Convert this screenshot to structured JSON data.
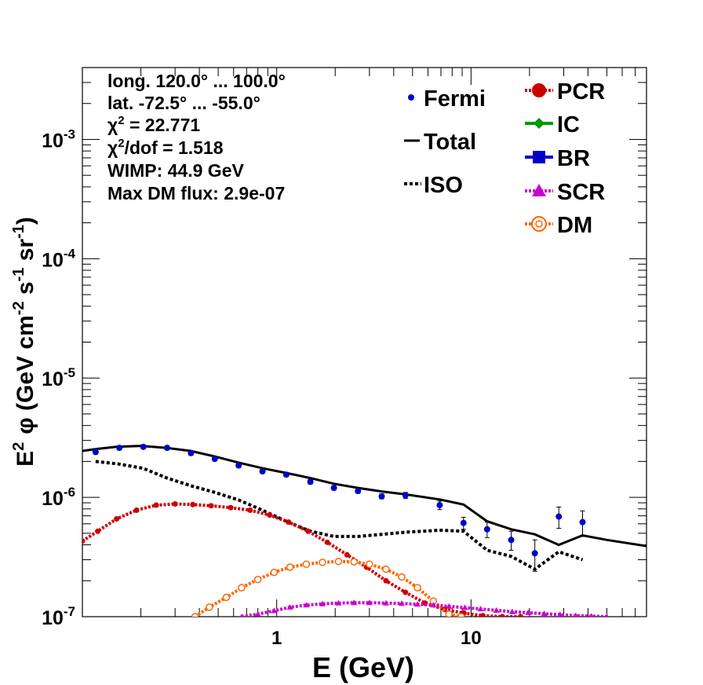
{
  "chart_data": {
    "type": "scatter",
    "xlabel": "E (GeV)",
    "ylabel": {
      "base": "E",
      "sup1": "2",
      "phi": "φ (GeV cm",
      "sup2": "-2",
      "mid1": " s",
      "sup3": "-1",
      "mid2": " sr",
      "sup4": "-1",
      "end": ")"
    },
    "x_scale": "log",
    "y_scale": "log",
    "xlim": [
      0.1,
      80
    ],
    "ylim": [
      1e-07,
      0.004
    ],
    "x_ticks": [
      {
        "value": 1,
        "label": "1"
      },
      {
        "value": 10,
        "label": "10"
      }
    ],
    "y_ticks": [
      {
        "value": 1e-07,
        "base": "10",
        "exp": "-7"
      },
      {
        "value": 1e-06,
        "base": "10",
        "exp": "-6"
      },
      {
        "value": 1e-05,
        "base": "10",
        "exp": "-5"
      },
      {
        "value": 0.0001,
        "base": "10",
        "exp": "-4"
      },
      {
        "value": 0.001,
        "base": "10",
        "exp": "-3"
      }
    ],
    "info_text": [
      {
        "text": "long. 120.0° ... 100.0°"
      },
      {
        "text": "lat. -72.5° ... -55.0°"
      },
      {
        "pre": "χ",
        "sup": "2",
        "post": " = 22.771"
      },
      {
        "pre": "χ",
        "sup": "2",
        "post": "/dof = 1.518"
      },
      {
        "text": "WIMP: 44.9 GeV"
      },
      {
        "text": "Max DM flux: 2.9e-07"
      }
    ],
    "legend_left": [
      {
        "label": "Fermi",
        "style": "point",
        "color": "#0000cc"
      },
      {
        "label": "Total",
        "style": "solid",
        "color": "#000000"
      },
      {
        "label": "ISO",
        "style": "dotted",
        "color": "#000000"
      }
    ],
    "legend_right": [
      {
        "label": "PCR",
        "style": "circle",
        "color": "#cc0000"
      },
      {
        "label": "IC",
        "style": "diamond",
        "color": "#009900"
      },
      {
        "label": "BR",
        "style": "square",
        "color": "#0000cc"
      },
      {
        "label": "SCR",
        "style": "triangle",
        "color": "#cc00cc"
      },
      {
        "label": "DM",
        "style": "open-circle",
        "color": "#ff6600"
      }
    ],
    "fermi": {
      "name": "Fermi",
      "color": "#0000cc",
      "points": [
        {
          "x": 0.117,
          "y": 2.4e-06,
          "err": 1e-07
        },
        {
          "x": 0.155,
          "y": 2.6e-06,
          "err": 1e-07
        },
        {
          "x": 0.206,
          "y": 2.65e-06,
          "err": 1e-07
        },
        {
          "x": 0.273,
          "y": 2.6e-06,
          "err": 1e-07
        },
        {
          "x": 0.362,
          "y": 2.35e-06,
          "err": 1e-07
        },
        {
          "x": 0.48,
          "y": 2.1e-06,
          "err": 8e-08
        },
        {
          "x": 0.637,
          "y": 1.85e-06,
          "err": 7e-08
        },
        {
          "x": 0.845,
          "y": 1.65e-06,
          "err": 6e-08
        },
        {
          "x": 1.12,
          "y": 1.55e-06,
          "err": 6e-08
        },
        {
          "x": 1.49,
          "y": 1.35e-06,
          "err": 6e-08
        },
        {
          "x": 1.97,
          "y": 1.2e-06,
          "err": 5e-08
        },
        {
          "x": 2.62,
          "y": 1.13e-06,
          "err": 5e-08
        },
        {
          "x": 3.47,
          "y": 1.02e-06,
          "err": 5e-08
        },
        {
          "x": 4.6,
          "y": 1.04e-06,
          "err": 6e-08
        },
        {
          "x": 6.9,
          "y": 8.6e-07,
          "err": 7e-08
        },
        {
          "x": 9.15,
          "y": 6.1e-07,
          "err": 7e-08
        },
        {
          "x": 12.1,
          "y": 5.4e-07,
          "err": 8e-08
        },
        {
          "x": 16.1,
          "y": 4.4e-07,
          "err": 8e-08
        },
        {
          "x": 21.3,
          "y": 3.4e-07,
          "err": 1e-07
        },
        {
          "x": 28.3,
          "y": 6.9e-07,
          "err": 1.4e-07
        },
        {
          "x": 37.5,
          "y": 6.2e-07,
          "err": 1.5e-07
        }
      ]
    },
    "series": [
      {
        "name": "Total",
        "color": "#000000",
        "style": "solid",
        "x": [
          0.1,
          0.12,
          0.15,
          0.2,
          0.27,
          0.36,
          0.48,
          0.64,
          0.85,
          1.12,
          1.49,
          1.97,
          2.62,
          3.47,
          4.6,
          6.9,
          9.15,
          12.1,
          16.1,
          21.3,
          28.3,
          37.5,
          50,
          80
        ],
        "y": [
          2.45e-06,
          2.55e-06,
          2.65e-06,
          2.7e-06,
          2.6e-06,
          2.45e-06,
          2.2e-06,
          1.95e-06,
          1.75e-06,
          1.6e-06,
          1.45e-06,
          1.3e-06,
          1.2e-06,
          1.12e-06,
          1.06e-06,
          9.6e-07,
          8.7e-07,
          6.3e-07,
          5.4e-07,
          4.9e-07,
          4e-07,
          4.8e-07,
          4.4e-07,
          3.9e-07
        ]
      },
      {
        "name": "ISO",
        "color": "#000000",
        "style": "dotted",
        "x": [
          0.117,
          0.155,
          0.206,
          0.273,
          0.362,
          0.48,
          0.637,
          0.845,
          1.12,
          1.49,
          1.97,
          2.62,
          3.47,
          4.6,
          6.9,
          9.15,
          12.1,
          16.1,
          21.3,
          28.3,
          37.5
        ],
        "y": [
          2e-06,
          1.9e-06,
          1.75e-06,
          1.45e-06,
          1.25e-06,
          1.1e-06,
          9.5e-07,
          7.8e-07,
          6.3e-07,
          5.2e-07,
          4.7e-07,
          4.7e-07,
          4.9e-07,
          5.1e-07,
          5.3e-07,
          5.2e-07,
          3.6e-07,
          3.2e-07,
          2.5e-07,
          3.5e-07,
          3e-07
        ]
      },
      {
        "name": "PCR",
        "color": "#cc0000",
        "style": "dashed-marker",
        "marker": "circle",
        "x": [
          0.1,
          0.12,
          0.15,
          0.19,
          0.24,
          0.3,
          0.37,
          0.46,
          0.58,
          0.73,
          0.92,
          1.15,
          1.45,
          1.82,
          2.3,
          2.9,
          3.65,
          4.6,
          5.8,
          7.3,
          9.2,
          11.5,
          14.5,
          18
        ],
        "y": [
          4.3e-07,
          5.2e-07,
          6.6e-07,
          7.8e-07,
          8.6e-07,
          8.8e-07,
          8.7e-07,
          8.5e-07,
          8.2e-07,
          7.8e-07,
          7.1e-07,
          6.2e-07,
          5.2e-07,
          4.2e-07,
          3.3e-07,
          2.6e-07,
          2e-07,
          1.6e-07,
          1.3e-07,
          1.15e-07,
          1.07e-07,
          1.02e-07,
          1e-07,
          1e-07
        ]
      },
      {
        "name": "DM",
        "color": "#ff6600",
        "style": "dashed-marker",
        "marker": "open-circle",
        "x": [
          0.38,
          0.45,
          0.55,
          0.66,
          0.8,
          0.97,
          1.17,
          1.42,
          1.72,
          2.08,
          2.5,
          3.0,
          3.65,
          4.4,
          5.3,
          6.4,
          7.7,
          8.9
        ],
        "y": [
          1e-07,
          1.2e-07,
          1.45e-07,
          1.75e-07,
          2.05e-07,
          2.35e-07,
          2.6e-07,
          2.75e-07,
          2.85e-07,
          2.9e-07,
          2.88e-07,
          2.75e-07,
          2.5e-07,
          2.15e-07,
          1.75e-07,
          1.35e-07,
          1.05e-07,
          1e-07
        ]
      },
      {
        "name": "SCR",
        "color": "#cc00cc",
        "style": "dashed-marker",
        "marker": "triangle",
        "x": [
          0.66,
          0.8,
          0.97,
          1.17,
          1.42,
          1.72,
          2.08,
          2.5,
          3.0,
          3.65,
          4.4,
          5.3,
          6.4,
          7.7,
          9.3,
          11.2,
          13.5,
          16.3,
          19.7,
          23.8,
          28.7,
          34.6,
          41.7,
          50
        ],
        "y": [
          1e-07,
          1.05e-07,
          1.12e-07,
          1.2e-07,
          1.25e-07,
          1.28e-07,
          1.3e-07,
          1.31e-07,
          1.31e-07,
          1.3e-07,
          1.29e-07,
          1.27e-07,
          1.25e-07,
          1.22e-07,
          1.19e-07,
          1.16e-07,
          1.13e-07,
          1.1e-07,
          1.08e-07,
          1.06e-07,
          1.04e-07,
          1.02e-07,
          1.01e-07,
          1e-07
        ]
      }
    ]
  }
}
